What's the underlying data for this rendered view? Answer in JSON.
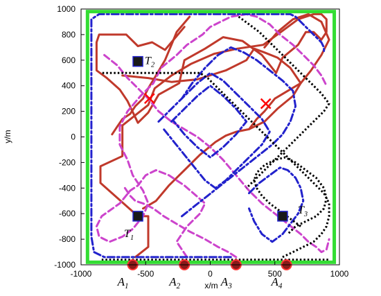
{
  "chart_data": {
    "type": "line",
    "title": "",
    "xlabel": "x/m",
    "ylabel": "y/m",
    "xlim": [
      -1000,
      1000
    ],
    "ylim": [
      -1000,
      1000
    ],
    "xticks": [
      -1000,
      -500,
      0,
      500,
      1000
    ],
    "yticks": [
      -1000,
      -800,
      -600,
      -400,
      -200,
      0,
      200,
      400,
      600,
      800,
      1000
    ],
    "grid": false,
    "legend": "none",
    "boundary": {
      "x": [
        -950,
        960
      ],
      "y": [
        -980,
        980
      ],
      "color": "#33dd33"
    },
    "targets": [
      {
        "id": "T1",
        "letter": "T",
        "sub": "1",
        "x": -560,
        "y": -620
      },
      {
        "id": "T2",
        "letter": "T",
        "sub": "2",
        "x": -560,
        "y": 590
      },
      {
        "id": "T3",
        "letter": "T",
        "sub": "3",
        "x": 560,
        "y": -620
      }
    ],
    "agents": [
      {
        "id": "A1",
        "letter": "A",
        "sub": "1",
        "x": -600,
        "y": -1000
      },
      {
        "id": "A2",
        "letter": "A",
        "sub": "2",
        "x": -200,
        "y": -1000
      },
      {
        "id": "A3",
        "letter": "A",
        "sub": "3",
        "x": 200,
        "y": -1000
      },
      {
        "id": "A4",
        "letter": "A",
        "sub": "4",
        "x": 590,
        "y": -1000
      }
    ],
    "series": [
      {
        "id": "agent-1-path",
        "color": "#c0392b",
        "style": "solid",
        "x": [
          -580,
          -480,
          -480,
          -560,
          -850,
          -850,
          -680,
          -680,
          -480,
          -430,
          -300,
          -150,
          30,
          210,
          410,
          560,
          680,
          800,
          860,
          900,
          900,
          860,
          800,
          740,
          680,
          560,
          510,
          400,
          250,
          100,
          -40,
          -200,
          -240,
          -400,
          -480,
          -560,
          -640,
          -700,
          -800,
          -880,
          -880,
          -860,
          -650,
          -560,
          -450,
          -350,
          -200
        ],
        "y": [
          -940,
          -860,
          -620,
          -620,
          -360,
          -230,
          -150,
          90,
          250,
          380,
          480,
          570,
          650,
          690,
          720,
          830,
          920,
          960,
          960,
          920,
          820,
          760,
          820,
          820,
          720,
          620,
          500,
          640,
          750,
          780,
          690,
          600,
          420,
          330,
          190,
          110,
          280,
          370,
          460,
          520,
          740,
          800,
          800,
          710,
          740,
          680,
          860
        ]
      },
      {
        "id": "agent-1-path-b",
        "color": "#c0392b",
        "style": "solid",
        "x": [
          -680,
          -480,
          -300,
          -100,
          120,
          280,
          340,
          420,
          520,
          620,
          700,
          640,
          520,
          420,
          300,
          200,
          120,
          40,
          -80,
          -200,
          -320,
          -420,
          -520
        ],
        "y": [
          480,
          460,
          430,
          450,
          520,
          600,
          690,
          660,
          620,
          540,
          420,
          320,
          220,
          120,
          60,
          40,
          10,
          -40,
          -140,
          -260,
          -380,
          -500,
          -560
        ]
      },
      {
        "id": "agent-1-path-c",
        "color": "#c0392b",
        "style": "solid",
        "x": [
          -160,
          -260,
          -300,
          -350,
          -420,
          -480,
          -520,
          -580,
          -620,
          -680,
          -720,
          -760
        ],
        "y": [
          940,
          820,
          720,
          600,
          480,
          380,
          300,
          240,
          180,
          140,
          80,
          20
        ]
      },
      {
        "id": "agent-1-path-d",
        "color": "#c0392b",
        "style": "solid",
        "x": [
          300,
          360,
          420,
          500,
          600,
          700,
          780,
          860,
          920,
          860,
          760,
          640,
          520,
          420
        ],
        "y": [
          60,
          140,
          200,
          300,
          360,
          420,
          520,
          640,
          760,
          900,
          960,
          920,
          820,
          700
        ]
      },
      {
        "id": "agent-2-path",
        "color": "#cc44cc",
        "style": "dashed",
        "x": [
          -180,
          -260,
          -180,
          -80,
          -40,
          -200,
          -320,
          -420,
          -500,
          -560,
          -620,
          -700,
          -840,
          -880,
          -860,
          -780,
          -680,
          -600,
          -520,
          -480,
          -520,
          -600,
          -640,
          -700,
          -700,
          -640,
          -540,
          -440,
          -380,
          -260,
          -180,
          -60,
          0,
          80,
          160,
          280,
          360,
          460,
          540,
          640,
          720,
          800,
          860,
          900
        ],
        "y": [
          -940,
          -820,
          -700,
          -600,
          -520,
          -380,
          -300,
          -260,
          -300,
          -380,
          -420,
          -520,
          -620,
          -700,
          -780,
          -820,
          -780,
          -720,
          -620,
          -520,
          -420,
          -300,
          -180,
          -60,
          80,
          200,
          320,
          420,
          540,
          640,
          720,
          800,
          860,
          900,
          940,
          960,
          940,
          880,
          800,
          720,
          640,
          560,
          480,
          400
        ]
      },
      {
        "id": "agent-2-path-b",
        "color": "#cc44cc",
        "style": "dashed",
        "x": [
          -820,
          -720,
          -640,
          -560,
          -480,
          -400,
          -300,
          -200,
          -100,
          0,
          100,
          200,
          300,
          400,
          500,
          600,
          700,
          760,
          820,
          860,
          900,
          920
        ],
        "y": [
          640,
          560,
          460,
          380,
          300,
          200,
          120,
          60,
          0,
          -80,
          -180,
          -300,
          -420,
          -520,
          -600,
          -680,
          -760,
          -820,
          -860,
          -900,
          -880,
          -800
        ]
      },
      {
        "id": "agent-2-path-c",
        "color": "#cc44cc",
        "style": "dashed",
        "x": [
          200,
          140,
          60,
          -40,
          -160,
          -260,
          -360,
          -440,
          -520,
          -580,
          -620,
          -660
        ],
        "y": [
          -940,
          -900,
          -860,
          -800,
          -740,
          -680,
          -620,
          -560,
          -520,
          -500,
          -460,
          -400
        ]
      },
      {
        "id": "agent-3-path",
        "color": "#2222cc",
        "style": "dashdot",
        "x": [
          160,
          80,
          -20,
          -120,
          -220,
          -320,
          -420,
          -520,
          -620,
          -720,
          -820,
          -900,
          -920,
          -920,
          -860,
          -760,
          -660,
          -560,
          -460,
          -360,
          -260,
          -160,
          -60,
          40,
          140,
          240,
          340,
          440,
          520,
          580,
          620,
          660,
          700,
          740,
          780,
          820,
          860,
          880,
          880
        ],
        "y": [
          -940,
          -940,
          -940,
          -940,
          -940,
          -940,
          -940,
          -940,
          -940,
          -940,
          -940,
          -900,
          -780,
          920,
          960,
          960,
          960,
          960,
          960,
          960,
          960,
          960,
          960,
          960,
          960,
          960,
          960,
          960,
          960,
          960,
          960,
          940,
          900,
          860,
          820,
          780,
          740,
          700,
          660
        ]
      },
      {
        "id": "agent-3-path-b",
        "color": "#2222cc",
        "style": "dashdot",
        "x": [
          -400,
          -300,
          -200,
          -100,
          0,
          100,
          200,
          300,
          400,
          460,
          400,
          300,
          200,
          120,
          40,
          -40,
          -120,
          -200,
          -280,
          -360
        ],
        "y": [
          120,
          220,
          320,
          420,
          500,
          440,
          340,
          240,
          140,
          40,
          -60,
          -160,
          -260,
          -340,
          -400,
          -340,
          -240,
          -140,
          -40,
          60
        ]
      },
      {
        "id": "agent-3-path-c",
        "color": "#2222cc",
        "style": "dashdot",
        "x": [
          -300,
          -200,
          -100,
          0,
          100,
          200,
          280,
          200,
          100,
          0,
          -100,
          -200,
          -280
        ],
        "y": [
          120,
          220,
          320,
          400,
          320,
          220,
          120,
          20,
          -80,
          -160,
          -80,
          20,
          120
        ]
      },
      {
        "id": "agent-3-path-d",
        "color": "#2222cc",
        "style": "dashdot",
        "x": [
          300,
          380,
          460,
          540,
          600,
          660,
          700,
          720,
          680,
          620,
          560,
          480,
          400,
          340,
          300
        ],
        "y": [
          -440,
          -360,
          -300,
          -240,
          -260,
          -320,
          -400,
          -500,
          -600,
          -680,
          -760,
          -820,
          -760,
          -660,
          -560
        ]
      },
      {
        "id": "agent-3-path-e",
        "color": "#2222cc",
        "style": "dashdot",
        "x": [
          -220,
          -120,
          -20,
          80,
          180,
          280,
          380,
          480,
          560,
          620,
          660,
          640,
          560,
          460,
          360,
          260,
          160,
          60,
          -40,
          -140,
          -220
        ],
        "y": [
          -620,
          -540,
          -460,
          -380,
          -300,
          -220,
          -140,
          -60,
          20,
          120,
          240,
          360,
          440,
          520,
          600,
          660,
          700,
          640,
          540,
          420,
          300
        ]
      },
      {
        "id": "agent-4-path",
        "color": "#000000",
        "style": "dotted",
        "x": [
          560,
          640,
          720,
          800,
          860,
          900,
          920,
          920,
          880,
          820,
          760,
          700,
          640,
          580,
          520,
          460,
          400,
          340,
          280,
          220,
          160,
          100,
          40,
          -20,
          -80,
          -140,
          -200,
          -260,
          -320,
          -380,
          -440,
          -500,
          -560,
          -620,
          -680,
          -740,
          -800,
          -840
        ],
        "y": [
          -940,
          -900,
          -860,
          -820,
          -760,
          -700,
          -620,
          -520,
          -440,
          -380,
          -320,
          -260,
          -200,
          -140,
          -80,
          -20,
          40,
          100,
          160,
          220,
          280,
          340,
          400,
          460,
          500,
          500,
          500,
          500,
          500,
          500,
          500,
          500,
          500,
          500,
          500,
          500,
          500,
          500
        ]
      },
      {
        "id": "agent-4-path-b",
        "color": "#000000",
        "style": "dotted",
        "x": [
          220,
          300,
          380,
          460,
          540,
          620,
          700,
          780,
          860,
          920,
          880,
          820,
          760,
          700,
          640,
          580,
          520,
          460,
          400,
          340,
          280
        ],
        "y": [
          940,
          880,
          820,
          740,
          660,
          580,
          500,
          420,
          340,
          260,
          200,
          140,
          80,
          20,
          -40,
          -100,
          -160,
          -220,
          -280,
          -340,
          -400
        ]
      },
      {
        "id": "agent-4-path-c",
        "color": "#000000",
        "style": "dotted",
        "x": [
          -840,
          -700,
          -560,
          -420,
          -280,
          -140,
          0,
          140,
          280,
          420,
          560,
          700,
          840,
          920
        ],
        "y": [
          -960,
          -960,
          -960,
          -960,
          -960,
          -960,
          -960,
          -960,
          -960,
          -960,
          -960,
          -960,
          -960,
          -960
        ]
      },
      {
        "id": "agent-4-path-d",
        "color": "#000000",
        "style": "dotted",
        "x": [
          700,
          620,
          540,
          460,
          400,
          360,
          340,
          360,
          420,
          500,
          580,
          660,
          740,
          820,
          880,
          900,
          880,
          820,
          740,
          660,
          600
        ],
        "y": [
          -700,
          -640,
          -580,
          -520,
          -460,
          -400,
          -340,
          -280,
          -220,
          -180,
          -160,
          -200,
          -260,
          -320,
          -400,
          -480,
          -560,
          -620,
          -660,
          -700,
          -760
        ]
      }
    ],
    "crosses": [
      {
        "x": -470,
        "y": 300,
        "color": "#ff0000"
      },
      {
        "x": 430,
        "y": 260,
        "color": "#ff0000"
      }
    ]
  }
}
